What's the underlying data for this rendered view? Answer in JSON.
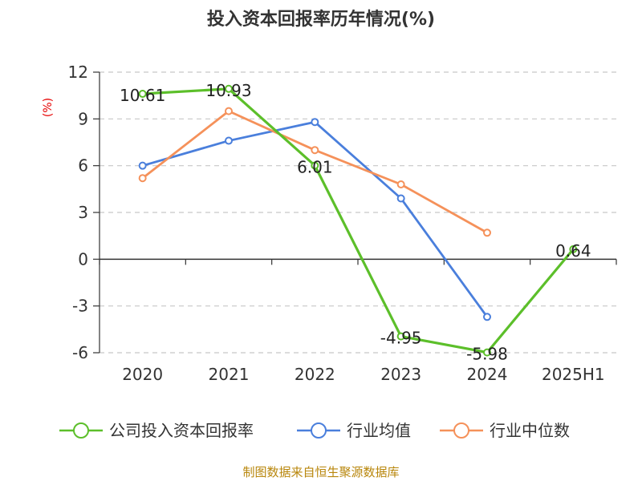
{
  "chart_data": {
    "type": "line",
    "title": "投入资本回报率历年情况(%)",
    "ylabel": "(%)",
    "categories": [
      "2020",
      "2021",
      "2022",
      "2023",
      "2024",
      "2025H1"
    ],
    "ylim": [
      -6,
      12
    ],
    "yticks": [
      12,
      9,
      6,
      3,
      0,
      -3,
      -6
    ],
    "grid": "dashed horizontal",
    "legend_position": "bottom",
    "series": [
      {
        "name": "公司投入资本回报率",
        "color": "#5cbf2a",
        "values": [
          10.61,
          10.93,
          6.01,
          -4.95,
          -5.98,
          0.64
        ],
        "labels": [
          "10.61",
          "10.93",
          "6.01",
          "-4.95",
          "-5.98",
          "0.64"
        ]
      },
      {
        "name": "行业均值",
        "color": "#4a7fdc",
        "values": [
          6.0,
          7.6,
          8.8,
          3.9,
          -3.7,
          null
        ]
      },
      {
        "name": "行业中位数",
        "color": "#f5915a",
        "values": [
          5.2,
          9.5,
          7.0,
          4.8,
          1.7,
          null
        ]
      }
    ]
  },
  "source": "制图数据来自恒生聚源数据库"
}
